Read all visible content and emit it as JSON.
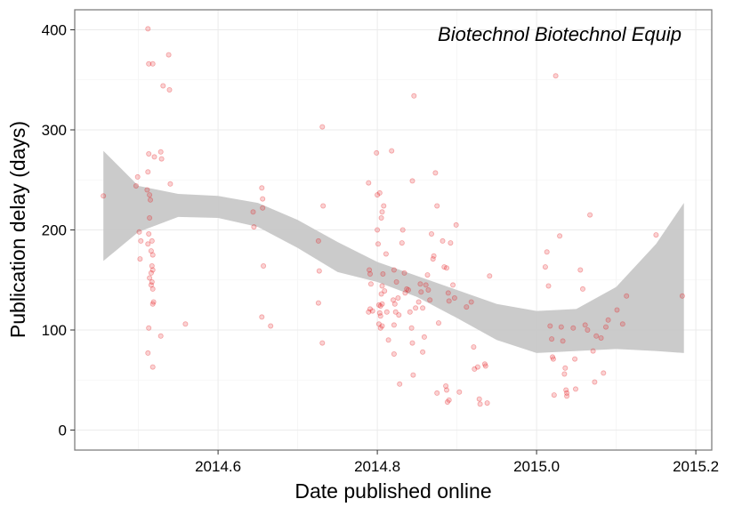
{
  "chart_data": {
    "type": "scatter",
    "title": "Biotechnol Biotechnol Equip",
    "xlabel": "Date published online",
    "ylabel": "Publication delay (days)",
    "xlim": [
      2014.42,
      2015.22
    ],
    "ylim": [
      -20,
      420
    ],
    "x_ticks": [
      2014.6,
      2014.8,
      2015.0,
      2015.2
    ],
    "x_tick_labels": [
      "2014.6",
      "2014.8",
      "2015.0",
      "2015.2"
    ],
    "y_ticks": [
      0,
      100,
      200,
      300,
      400
    ],
    "y_tick_labels": [
      "0",
      "100",
      "200",
      "300",
      "400"
    ],
    "grid": true,
    "legend": "none",
    "colors": {
      "points": "#e41a1c",
      "ribbon": "#c8c8c8",
      "panel_border": "#7f7f7f",
      "grid_major": "#ebebeb",
      "grid_minor": "#f4f4f4"
    },
    "smooth_band": {
      "x": [
        2014.456,
        2014.5,
        2014.55,
        2014.6,
        2014.65,
        2014.7,
        2014.75,
        2014.8,
        2014.85,
        2014.9,
        2014.95,
        2015.0,
        2015.05,
        2015.1,
        2015.15,
        2015.185
      ],
      "lower": [
        169,
        198,
        213,
        212,
        203,
        182,
        158,
        148,
        133,
        112,
        90,
        77,
        79,
        81,
        79,
        77
      ],
      "upper": [
        279,
        244,
        236,
        234,
        227,
        210,
        188,
        168,
        154,
        140,
        126,
        119,
        121,
        143,
        186,
        227
      ]
    },
    "points": [
      [
        2014.456,
        234
      ],
      [
        2014.497,
        244
      ],
      [
        2014.499,
        253
      ],
      [
        2014.501,
        198
      ],
      [
        2014.502,
        171
      ],
      [
        2014.503,
        189
      ],
      [
        2014.512,
        401
      ],
      [
        2014.513,
        366
      ],
      [
        2014.518,
        366
      ],
      [
        2014.513,
        276
      ],
      [
        2014.512,
        258
      ],
      [
        2014.511,
        240
      ],
      [
        2014.514,
        235
      ],
      [
        2014.515,
        230
      ],
      [
        2014.514,
        212
      ],
      [
        2014.513,
        196
      ],
      [
        2014.512,
        186
      ],
      [
        2014.517,
        189
      ],
      [
        2014.516,
        179
      ],
      [
        2014.518,
        175
      ],
      [
        2014.517,
        164
      ],
      [
        2014.516,
        157
      ],
      [
        2014.518,
        160
      ],
      [
        2014.514,
        152
      ],
      [
        2014.517,
        148
      ],
      [
        2014.516,
        145
      ],
      [
        2014.518,
        141
      ],
      [
        2014.519,
        128
      ],
      [
        2014.518,
        126
      ],
      [
        2014.513,
        102
      ],
      [
        2014.512,
        77
      ],
      [
        2014.518,
        63
      ],
      [
        2014.52,
        273
      ],
      [
        2014.528,
        278
      ],
      [
        2014.529,
        271
      ],
      [
        2014.531,
        344
      ],
      [
        2014.538,
        375
      ],
      [
        2014.539,
        340
      ],
      [
        2014.54,
        246
      ],
      [
        2014.528,
        94
      ],
      [
        2014.559,
        106
      ],
      [
        2014.644,
        218
      ],
      [
        2014.645,
        203
      ],
      [
        2014.655,
        242
      ],
      [
        2014.656,
        231
      ],
      [
        2014.656,
        222
      ],
      [
        2014.657,
        164
      ],
      [
        2014.655,
        113
      ],
      [
        2014.666,
        104
      ],
      [
        2014.726,
        189
      ],
      [
        2014.727,
        159
      ],
      [
        2014.726,
        127
      ],
      [
        2014.731,
        303
      ],
      [
        2014.732,
        224
      ],
      [
        2014.731,
        87
      ],
      [
        2014.789,
        247
      ],
      [
        2014.79,
        160
      ],
      [
        2014.791,
        156
      ],
      [
        2014.792,
        146
      ],
      [
        2014.789,
        118
      ],
      [
        2014.791,
        121
      ],
      [
        2014.794,
        119
      ],
      [
        2014.799,
        277
      ],
      [
        2014.8,
        235
      ],
      [
        2014.803,
        237
      ],
      [
        2014.8,
        200
      ],
      [
        2014.801,
        186
      ],
      [
        2014.805,
        212
      ],
      [
        2014.806,
        218
      ],
      [
        2014.808,
        224
      ],
      [
        2014.807,
        156
      ],
      [
        2014.806,
        144
      ],
      [
        2014.805,
        136
      ],
      [
        2014.802,
        125
      ],
      [
        2014.804,
        124
      ],
      [
        2014.806,
        126
      ],
      [
        2014.803,
        117
      ],
      [
        2014.804,
        114
      ],
      [
        2014.802,
        106
      ],
      [
        2014.804,
        102
      ],
      [
        2014.806,
        104
      ],
      [
        2014.809,
        139
      ],
      [
        2014.811,
        176
      ],
      [
        2014.812,
        118
      ],
      [
        2014.814,
        90
      ],
      [
        2014.818,
        279
      ],
      [
        2014.82,
        130
      ],
      [
        2014.821,
        160
      ],
      [
        2014.822,
        126
      ],
      [
        2014.823,
        118
      ],
      [
        2014.821,
        105
      ],
      [
        2014.821,
        76
      ],
      [
        2014.824,
        148
      ],
      [
        2014.826,
        132
      ],
      [
        2014.827,
        115
      ],
      [
        2014.828,
        46
      ],
      [
        2014.831,
        187
      ],
      [
        2014.832,
        200
      ],
      [
        2014.834,
        157
      ],
      [
        2014.835,
        137
      ],
      [
        2014.837,
        141
      ],
      [
        2014.839,
        140
      ],
      [
        2014.841,
        118
      ],
      [
        2014.843,
        102
      ],
      [
        2014.844,
        87
      ],
      [
        2014.845,
        55
      ],
      [
        2014.844,
        249
      ],
      [
        2014.846,
        334
      ],
      [
        2014.848,
        122
      ],
      [
        2014.852,
        128
      ],
      [
        2014.854,
        146
      ],
      [
        2014.855,
        138
      ],
      [
        2014.857,
        122
      ],
      [
        2014.859,
        93
      ],
      [
        2014.857,
        78
      ],
      [
        2014.861,
        145
      ],
      [
        2014.863,
        155
      ],
      [
        2014.864,
        140
      ],
      [
        2014.866,
        130
      ],
      [
        2014.868,
        196
      ],
      [
        2014.87,
        171
      ],
      [
        2014.871,
        174
      ],
      [
        2014.873,
        257
      ],
      [
        2014.875,
        224
      ],
      [
        2014.877,
        107
      ],
      [
        2014.875,
        37
      ],
      [
        2014.882,
        189
      ],
      [
        2014.884,
        163
      ],
      [
        2014.887,
        162
      ],
      [
        2014.889,
        137
      ],
      [
        2014.89,
        129
      ],
      [
        2014.886,
        44
      ],
      [
        2014.887,
        40
      ],
      [
        2014.888,
        28
      ],
      [
        2014.89,
        30
      ],
      [
        2014.892,
        187
      ],
      [
        2014.895,
        145
      ],
      [
        2014.897,
        132
      ],
      [
        2014.899,
        205
      ],
      [
        2014.903,
        38
      ],
      [
        2014.912,
        123
      ],
      [
        2014.918,
        128
      ],
      [
        2014.921,
        83
      ],
      [
        2014.922,
        61
      ],
      [
        2014.926,
        63
      ],
      [
        2014.928,
        31
      ],
      [
        2014.929,
        26
      ],
      [
        2014.935,
        66
      ],
      [
        2014.936,
        64
      ],
      [
        2014.938,
        27
      ],
      [
        2014.941,
        154
      ],
      [
        2015.011,
        163
      ],
      [
        2015.013,
        178
      ],
      [
        2015.015,
        144
      ],
      [
        2015.017,
        104
      ],
      [
        2015.019,
        91
      ],
      [
        2015.02,
        73
      ],
      [
        2015.021,
        71
      ],
      [
        2015.022,
        35
      ],
      [
        2015.024,
        354
      ],
      [
        2015.029,
        194
      ],
      [
        2015.031,
        103
      ],
      [
        2015.033,
        89
      ],
      [
        2015.035,
        56
      ],
      [
        2015.036,
        62
      ],
      [
        2015.037,
        40
      ],
      [
        2015.038,
        37
      ],
      [
        2015.038,
        34
      ],
      [
        2015.046,
        102
      ],
      [
        2015.048,
        71
      ],
      [
        2015.049,
        41
      ],
      [
        2015.055,
        160
      ],
      [
        2015.058,
        141
      ],
      [
        2015.061,
        105
      ],
      [
        2015.064,
        100
      ],
      [
        2015.067,
        215
      ],
      [
        2015.071,
        79
      ],
      [
        2015.073,
        48
      ],
      [
        2015.075,
        94
      ],
      [
        2015.081,
        92
      ],
      [
        2015.084,
        57
      ],
      [
        2015.087,
        103
      ],
      [
        2015.09,
        110
      ],
      [
        2015.101,
        120
      ],
      [
        2015.108,
        106
      ],
      [
        2015.113,
        134
      ],
      [
        2015.15,
        195
      ],
      [
        2015.183,
        134
      ]
    ]
  }
}
